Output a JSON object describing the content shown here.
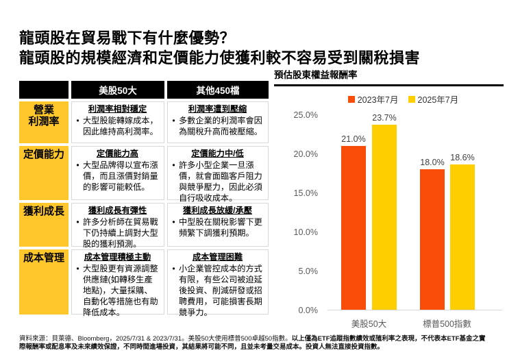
{
  "title": {
    "line1": "龍頭股在貿易戰下有什麼優勢？",
    "line2": "龍頭股的規模經濟和定價能力使獲利較不容易受到關稅損害"
  },
  "glyphs": {
    "bullet": "•"
  },
  "colors": {
    "header_bg": "#000000",
    "header_text": "#FFFFFF",
    "row_label_bg": "#FFC72C",
    "series_2023": "#FA4D09",
    "series_2025": "#FFCE00",
    "axis_line": "#D6D6D6"
  },
  "table": {
    "headers": [
      "美股50大",
      "其他450檔"
    ],
    "rows": [
      {
        "label_line1": "營業",
        "label_line2": "利潤率",
        "us50": {
          "heading": "利潤率相對穩定",
          "bullet": "大型股能轉嫁成本，因此維持高利潤率。"
        },
        "other450": {
          "heading": "利潤率遭到壓縮",
          "bullet": "多數企業的利潤率會因為關稅升高而被壓縮。"
        }
      },
      {
        "label_line1": "定價能力",
        "us50": {
          "heading": "定價能力高",
          "bullet": "大型品牌得以宣布漲價，而且漲價對銷量的影響可能較低。"
        },
        "other450": {
          "heading": "定價能力中/低",
          "bullet": "許多小型企業一旦漲價，就會面臨客戶阻力與競爭壓力，因此必須自行吸收成本。"
        }
      },
      {
        "label_line1": "獲利成長",
        "us50": {
          "heading": "獲利成長有彈性",
          "bullet": "許多分析師在貿易戰下仍持續上調對大型股的獲利預測。"
        },
        "other450": {
          "heading": "獲利成長放緩/承壓",
          "bullet": "中型股在關稅影響下更頻繁下調獲利預期。"
        }
      },
      {
        "label_line1": "成本管理",
        "us50": {
          "heading": "成本管理積極主動",
          "bullet": "大型股更有資源調整供應鏈(如轉移生產地點)，大量採購、自動化等措施也有助降低成本。"
        },
        "other450": {
          "heading": "成本管理困難",
          "bullet": "小企業管控成本的方式有限，有些公司被迫延後投資、削減研發或招聘費用，可能損害長期競爭力。"
        }
      }
    ]
  },
  "chart_data": {
    "type": "bar",
    "title": "預估股東權益報酬率",
    "categories": [
      "美股50大",
      "標普500指數"
    ],
    "series": [
      {
        "name": "2023年7月",
        "color": "#FA4D09",
        "values": [
          21.0,
          18.0
        ],
        "value_labels": [
          "21.0%",
          "18.0%"
        ]
      },
      {
        "name": "2025年7月",
        "color": "#FFCE00",
        "values": [
          23.7,
          18.6
        ],
        "value_labels": [
          "23.7%",
          "18.6%"
        ]
      }
    ],
    "ylim": [
      0,
      25
    ],
    "ytick_labels": [
      "25.0%",
      "20.0%",
      "15.0%",
      "10.0%",
      "5.0%",
      "0.0%"
    ],
    "legend_position": "top",
    "grid": false
  },
  "footer": {
    "source": "資料來源：貝萊德、Bloomberg，2025/7/31 & 2023/7/31。美股50大使用標普500卓越50指數。",
    "disclaimer": "以上僅為ETF追蹤指數績效或殖利率之表現，不代表本ETF基金之實際報酬率或配息率及未來績效保證，不同時間進場投資，其結果將可能不同，且並未考量交易成本。投資人無法直接投資指數。"
  }
}
